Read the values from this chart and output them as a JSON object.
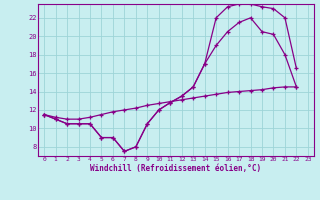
{
  "background_color": "#c8eef0",
  "grid_color": "#9dd4d8",
  "line_color": "#880088",
  "xlabel": "Windchill (Refroidissement éolien,°C)",
  "xlim": [
    -0.5,
    23.5
  ],
  "ylim": [
    7,
    23.5
  ],
  "yticks": [
    8,
    10,
    12,
    14,
    16,
    18,
    20,
    22
  ],
  "xticks": [
    0,
    1,
    2,
    3,
    4,
    5,
    6,
    7,
    8,
    9,
    10,
    11,
    12,
    13,
    14,
    15,
    16,
    17,
    18,
    19,
    20,
    21,
    22,
    23
  ],
  "series1_x": [
    0,
    1,
    2,
    3,
    4,
    5,
    6,
    7,
    8,
    9,
    10,
    11,
    12,
    13,
    14,
    15,
    16,
    17,
    18,
    19,
    20,
    21,
    22
  ],
  "series1_y": [
    11.5,
    11.0,
    10.5,
    10.5,
    10.5,
    9.0,
    9.0,
    7.5,
    8.0,
    10.5,
    12.0,
    12.8,
    13.5,
    14.5,
    17.0,
    22.0,
    23.2,
    23.5,
    23.5,
    23.2,
    23.0,
    22.0,
    16.5
  ],
  "series2_x": [
    0,
    1,
    2,
    3,
    4,
    5,
    6,
    7,
    8,
    9,
    10,
    11,
    12,
    13,
    14,
    15,
    16,
    17,
    18,
    19,
    20,
    21,
    22
  ],
  "series2_y": [
    11.5,
    11.0,
    10.5,
    10.5,
    10.5,
    9.0,
    9.0,
    7.5,
    8.0,
    10.5,
    12.0,
    12.8,
    13.5,
    14.5,
    17.0,
    19.0,
    20.5,
    21.5,
    22.0,
    20.5,
    20.2,
    18.0,
    14.5
  ],
  "series3_x": [
    0,
    1,
    2,
    3,
    4,
    5,
    6,
    7,
    8,
    9,
    10,
    11,
    12,
    13,
    14,
    15,
    16,
    17,
    18,
    19,
    20,
    21,
    22
  ],
  "series3_y": [
    11.5,
    11.2,
    11.0,
    11.0,
    11.2,
    11.5,
    11.8,
    12.0,
    12.2,
    12.5,
    12.7,
    12.9,
    13.1,
    13.3,
    13.5,
    13.7,
    13.9,
    14.0,
    14.1,
    14.2,
    14.4,
    14.5,
    14.5
  ]
}
